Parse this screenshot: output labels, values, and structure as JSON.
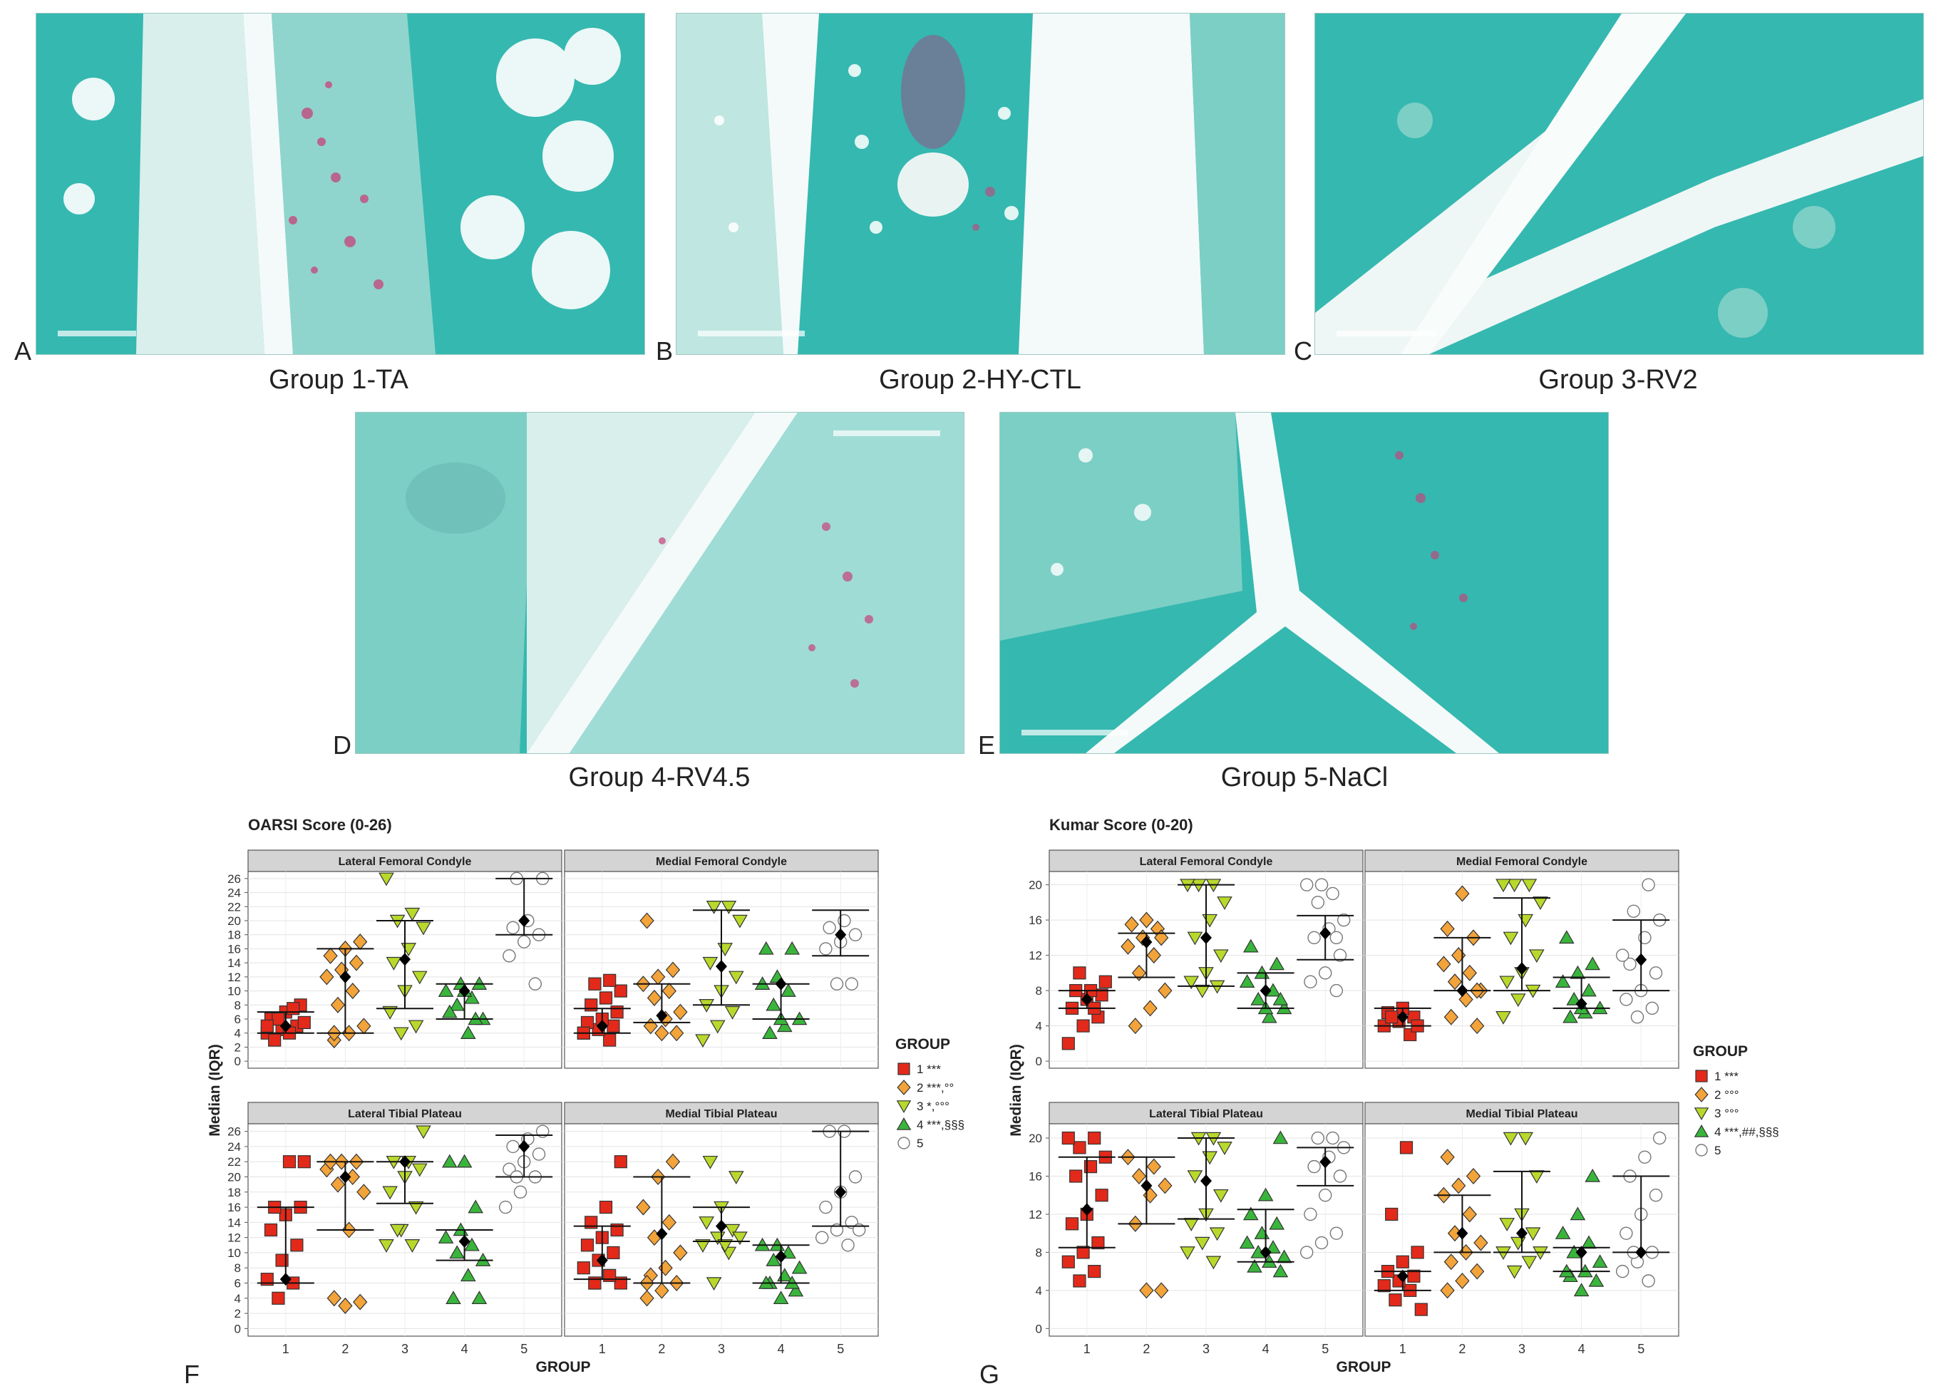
{
  "panels": [
    {
      "letter": "A",
      "caption": "Group 1-TA"
    },
    {
      "letter": "B",
      "caption": "Group 2-HY-CTL"
    },
    {
      "letter": "C",
      "caption": "Group 3-RV2"
    },
    {
      "letter": "D",
      "caption": "Group 4-RV4.5"
    },
    {
      "letter": "E",
      "caption": "Group 5-NaCl"
    },
    {
      "letter": "F"
    },
    {
      "letter": "G"
    }
  ],
  "colors": {
    "stain_green": "#35b8b0",
    "stain_light": "#9fdcd5",
    "cartilage_pale": "#cfe8e3",
    "safranin_red": "#c8417a",
    "group1": "#e3291a",
    "group2": "#f2a33a",
    "group3": "#b8d92c",
    "group4": "#39b53b",
    "group5": "#ffffff",
    "strip_bg": "#d4d4d4"
  },
  "chart_data": [
    {
      "type": "scatter",
      "title": "OARSI Score (0-26)",
      "ylabel": "Median (IQR)",
      "xlabel": "GROUP",
      "categories": [
        "1",
        "2",
        "3",
        "4",
        "5"
      ],
      "yticks": [
        0,
        2,
        4,
        6,
        8,
        10,
        12,
        14,
        16,
        18,
        20,
        22,
        24,
        26
      ],
      "ylim": [
        -1,
        27
      ],
      "legend": {
        "title": "GROUP",
        "entries": [
          "1 ***",
          "2 ***,°°",
          "3 *,°°°",
          "4 ***,§§§",
          "5"
        ]
      },
      "facets": [
        {
          "title": "Lateral Femoral Condyle",
          "points": [
            [
              4,
              4.5,
              5,
              6,
              7,
              8,
              3,
              4,
              5.5,
              6,
              7.5,
              5
            ],
            [
              3,
              4,
              5,
              8,
              10,
              12,
              13,
              14,
              15,
              16,
              17,
              4
            ],
            [
              4,
              5,
              7,
              10,
              12,
              14,
              16,
              19,
              20,
              21,
              26
            ],
            [
              4,
              6,
              8,
              9,
              10,
              11,
              6,
              7,
              10,
              11
            ],
            [
              11,
              15,
              17,
              18,
              19,
              20,
              26,
              26
            ]
          ],
          "medians": [
            5,
            12,
            14.5,
            10,
            20
          ],
          "q1": [
            4,
            4,
            7.5,
            6,
            18
          ],
          "q3": [
            7,
            16,
            20,
            11,
            26
          ]
        },
        {
          "title": "Medial Femoral Condyle",
          "points": [
            [
              3,
              4,
              4.5,
              5,
              5.5,
              6,
              7,
              8,
              9,
              10,
              11,
              11.5,
              4
            ],
            [
              4,
              5,
              6,
              7,
              9,
              10,
              11,
              12,
              13,
              20,
              4
            ],
            [
              3,
              5,
              7,
              8,
              10,
              12,
              14,
              16,
              20,
              22,
              22
            ],
            [
              4,
              5,
              6,
              8,
              10,
              11,
              12,
              16,
              16,
              6
            ],
            [
              11,
              11,
              16,
              17,
              18,
              19,
              20
            ]
          ],
          "medians": [
            5,
            6.5,
            13.5,
            11,
            18
          ],
          "q1": [
            4,
            5.5,
            8,
            6,
            15
          ],
          "q3": [
            7.5,
            11,
            21.5,
            11,
            21.5
          ]
        },
        {
          "title": "Lateral Tibial Plateau",
          "points": [
            [
              4,
              6,
              6.5,
              9,
              11,
              13,
              15,
              16,
              16,
              22,
              22
            ],
            [
              3,
              3.5,
              4,
              13,
              18,
              19,
              20,
              21,
              22,
              22,
              22
            ],
            [
              11,
              11,
              13,
              16,
              18,
              20,
              21,
              22,
              22,
              26,
              13
            ],
            [
              4,
              4,
              7,
              9,
              10,
              11,
              12,
              13,
              16,
              22,
              22
            ],
            [
              16,
              18,
              20,
              21,
              22,
              23,
              24,
              25,
              26,
              20
            ]
          ],
          "medians": [
            6.5,
            20,
            22,
            11.5,
            24
          ],
          "q1": [
            6,
            13,
            16.5,
            9,
            20
          ],
          "q3": [
            16,
            22,
            22,
            13,
            25.5
          ]
        },
        {
          "title": "Medial Tibial Plateau",
          "points": [
            [
              6,
              6,
              7,
              8,
              9,
              10,
              11,
              12,
              13,
              14,
              16,
              22,
              6
            ],
            [
              4,
              5,
              6,
              7,
              8,
              10,
              12,
              14,
              16,
              20,
              22,
              6
            ],
            [
              6,
              10,
              11,
              12,
              13,
              14,
              16,
              20,
              22,
              11,
              12
            ],
            [
              4,
              5,
              6,
              7,
              8,
              9,
              10,
              11,
              11,
              6,
              6
            ],
            [
              11,
              12,
              13,
              14,
              16,
              18,
              20,
              26,
              26,
              13
            ]
          ],
          "medians": [
            9,
            12.5,
            13.5,
            9.5,
            18
          ],
          "q1": [
            6.5,
            6,
            11.5,
            6,
            13.5
          ],
          "q3": [
            13.5,
            20,
            16,
            11,
            26
          ]
        }
      ]
    },
    {
      "type": "scatter",
      "title": "Kumar Score (0-20)",
      "ylabel": "Median (IQR)",
      "xlabel": "GROUP",
      "categories": [
        "1",
        "2",
        "3",
        "4",
        "5"
      ],
      "yticks": [
        0,
        4,
        8,
        12,
        16,
        20
      ],
      "ylim": [
        -0.8,
        21.5
      ],
      "legend": {
        "title": "GROUP",
        "entries": [
          "1 ***",
          "2 °°°",
          "3 °°°",
          "4 ***,##,§§§",
          "5"
        ]
      },
      "facets": [
        {
          "title": "Lateral Femoral Condyle",
          "points": [
            [
              2,
              4,
              5,
              6,
              7,
              7.5,
              8,
              8,
              9,
              10,
              6
            ],
            [
              4,
              6,
              8,
              10,
              12,
              13,
              14,
              15,
              15.5,
              16,
              14
            ],
            [
              8,
              8.5,
              9,
              10,
              12,
              14,
              16,
              18,
              20,
              20,
              20
            ],
            [
              5,
              6,
              7,
              8,
              9,
              10,
              11,
              13,
              6,
              7
            ],
            [
              8,
              9,
              10,
              12,
              14,
              15,
              16,
              18,
              19,
              20,
              20,
              14
            ]
          ],
          "medians": [
            7,
            13.5,
            14,
            8,
            14.5
          ],
          "q1": [
            6,
            9.5,
            8.5,
            6,
            11.5
          ],
          "q3": [
            8,
            14.5,
            20,
            10,
            16.5
          ]
        },
        {
          "title": "Medial Femoral Condyle",
          "points": [
            [
              3,
              4,
              4.5,
              5,
              5.5,
              6,
              4,
              5
            ],
            [
              4,
              5,
              7,
              8,
              9,
              10,
              11,
              12,
              14,
              15,
              19,
              8
            ],
            [
              5,
              7,
              8,
              9,
              10,
              12,
              14,
              16,
              18,
              20,
              20,
              20
            ],
            [
              5,
              5.5,
              6,
              7,
              8,
              9,
              10,
              11,
              14,
              6
            ],
            [
              5,
              6,
              7,
              8,
              10,
              11,
              14,
              16,
              17,
              20,
              12
            ]
          ],
          "medians": [
            5,
            8,
            10.5,
            6.5,
            11.5
          ],
          "q1": [
            4,
            8,
            8,
            6,
            8
          ],
          "q3": [
            6,
            14,
            18.5,
            9.5,
            16
          ]
        },
        {
          "title": "Lateral Tibial Plateau",
          "points": [
            [
              5,
              6,
              7,
              8,
              9,
              11,
              12,
              14,
              16,
              17,
              18,
              19,
              20,
              20
            ],
            [
              4,
              4,
              11,
              14,
              15,
              16,
              17,
              18
            ],
            [
              7,
              8,
              9,
              10,
              11,
              12,
              14,
              16,
              18,
              19,
              20,
              20
            ],
            [
              6,
              6.5,
              7,
              7.5,
              8,
              8.5,
              9,
              10,
              11,
              12,
              14,
              20
            ],
            [
              8,
              9,
              10,
              12,
              14,
              16,
              17,
              18,
              19,
              20,
              20
            ]
          ],
          "medians": [
            12.5,
            15,
            15.5,
            8,
            17.5
          ],
          "q1": [
            8.5,
            11,
            11.5,
            7,
            15
          ],
          "q3": [
            18,
            18,
            20,
            12.5,
            19
          ]
        },
        {
          "title": "Medial Tibial Plateau",
          "points": [
            [
              2,
              3,
              4,
              4.5,
              5,
              5.5,
              6,
              7,
              8,
              12,
              19
            ],
            [
              4,
              5,
              6,
              7,
              8,
              9,
              10,
              12,
              14,
              15,
              16,
              18
            ],
            [
              6,
              7,
              8,
              9,
              10,
              11,
              12,
              16,
              20,
              20,
              8
            ],
            [
              4,
              5,
              5.5,
              6,
              7,
              8,
              9,
              10,
              12,
              16,
              6
            ],
            [
              5,
              6,
              7,
              8,
              10,
              12,
              14,
              16,
              18,
              20,
              8
            ]
          ],
          "medians": [
            5.5,
            10,
            10,
            8,
            8
          ],
          "q1": [
            4,
            8,
            8,
            6,
            8
          ],
          "q3": [
            6,
            14,
            16.5,
            8.5,
            16
          ]
        }
      ]
    }
  ]
}
